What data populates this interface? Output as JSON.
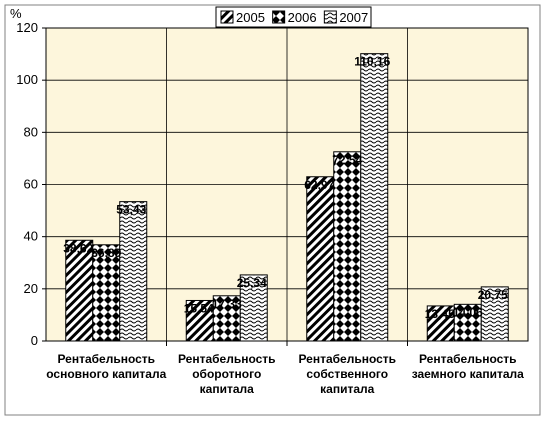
{
  "chart_data": {
    "type": "bar",
    "ylabel": "%",
    "ylim": [
      0,
      120
    ],
    "yticks": [
      0,
      20,
      40,
      60,
      80,
      100,
      120
    ],
    "grid": true,
    "legend": "top-center",
    "categories": [
      [
        "Рентабельность",
        "основного капитала"
      ],
      [
        "Рентабельность",
        "оборотного",
        "капитала"
      ],
      [
        "Рентабельность",
        "собственного",
        "капитала"
      ],
      [
        "Рентабельность",
        "заемного капитала"
      ]
    ],
    "series": [
      {
        "name": "2005",
        "pattern": "diagonal-hatch",
        "values": [
          38.62,
          15.54,
          62.97,
          13.45
        ],
        "labels": [
          "38,62",
          "15,54",
          "62,97",
          "13,45"
        ]
      },
      {
        "name": "2006",
        "pattern": "diamond-check",
        "values": [
          36.89,
          17.33,
          72.54,
          14.06
        ],
        "labels": [
          "36,89",
          "17,33",
          "72,54",
          "14,06"
        ]
      },
      {
        "name": "2007",
        "pattern": "wave",
        "values": [
          53.43,
          25.34,
          110.16,
          20.75
        ],
        "labels": [
          "53,43",
          "25,34",
          "110,16",
          "20,75"
        ]
      }
    ],
    "plot_background": "#fdf6dc",
    "bar_stroke": "#000000"
  }
}
